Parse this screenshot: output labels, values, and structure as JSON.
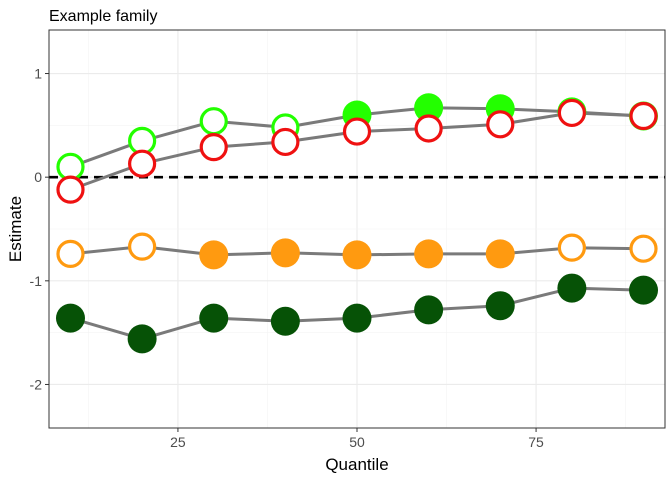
{
  "chart_data": {
    "type": "line",
    "title": "Example family",
    "xlabel": "Quantile",
    "ylabel": "Estimate",
    "xlim": [
      7,
      93
    ],
    "ylim": [
      -2.42,
      1.42
    ],
    "x_ticks": [
      25,
      50,
      75
    ],
    "y_ticks": [
      1,
      0,
      -1,
      -2
    ],
    "x_tick_labels": [
      "25",
      "50",
      "75"
    ],
    "y_tick_labels": [
      "1",
      "0",
      "-1",
      "-2"
    ],
    "grid": true,
    "reference_line": {
      "y": 0,
      "style": "dashed",
      "color": "#000000"
    },
    "line_color": "#7a7a7a",
    "x": [
      10,
      20,
      30,
      40,
      50,
      60,
      70,
      80,
      90
    ],
    "series": [
      {
        "color": "#23ff00",
        "y": [
          0.1,
          0.35,
          0.54,
          0.48,
          0.6,
          0.67,
          0.66,
          0.63,
          0.59
        ],
        "filled": [
          false,
          false,
          false,
          false,
          true,
          true,
          true,
          true,
          true
        ]
      },
      {
        "color": "#ef1111",
        "y": [
          -0.12,
          0.13,
          0.29,
          0.34,
          0.44,
          0.47,
          0.51,
          0.62,
          0.59
        ],
        "filled": [
          false,
          false,
          false,
          false,
          false,
          false,
          false,
          false,
          false
        ]
      },
      {
        "color": "#ff9a10",
        "y": [
          -0.74,
          -0.67,
          -0.75,
          -0.73,
          -0.75,
          -0.74,
          -0.74,
          -0.68,
          -0.69
        ],
        "filled": [
          false,
          false,
          true,
          true,
          true,
          true,
          true,
          false,
          false
        ]
      },
      {
        "color": "#065206",
        "y": [
          -1.36,
          -1.56,
          -1.36,
          -1.39,
          -1.36,
          -1.28,
          -1.24,
          -1.07,
          -1.09
        ],
        "filled": [
          true,
          true,
          true,
          true,
          true,
          true,
          true,
          true,
          true
        ]
      }
    ]
  }
}
